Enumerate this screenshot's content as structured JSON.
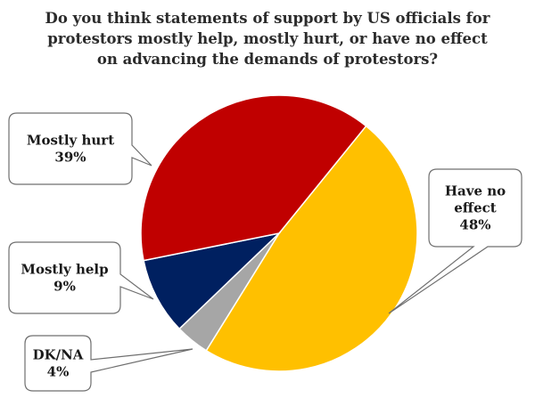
{
  "chart_data": {
    "type": "pie",
    "title_lines": [
      "Do you think statements of support by US officials for",
      "protestors mostly help, mostly hurt, or have no effect",
      "on advancing the demands of protestors?"
    ],
    "slices": [
      {
        "label_lines": [
          "Have no",
          "effect"
        ],
        "value": 48,
        "value_text": "48%",
        "color": "#ffc000"
      },
      {
        "label_lines": [
          "DK/NA"
        ],
        "value": 4,
        "value_text": "4%",
        "color": "#a6a6a6"
      },
      {
        "label_lines": [
          "Mostly help"
        ],
        "value": 9,
        "value_text": "9%",
        "color": "#002060"
      },
      {
        "label_lines": [
          "Mostly hurt"
        ],
        "value": 39,
        "value_text": "39%",
        "color": "#c00000"
      }
    ],
    "legend": "none"
  }
}
